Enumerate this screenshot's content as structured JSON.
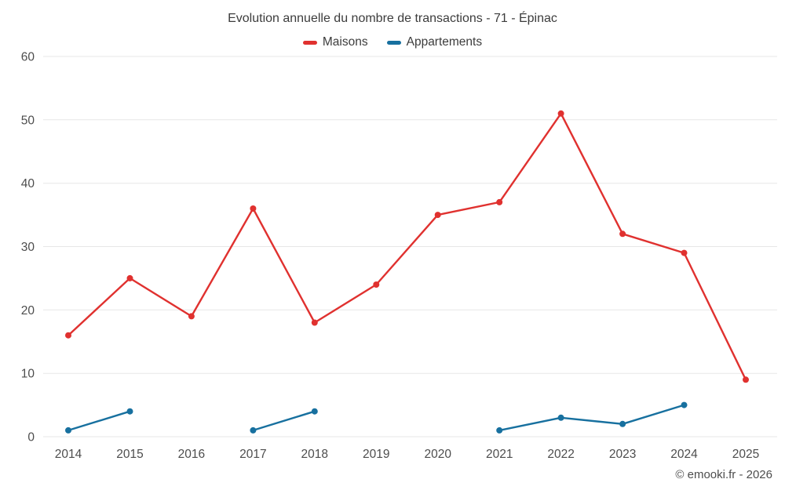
{
  "chart_data": {
    "type": "line",
    "title": "Evolution annuelle du nombre de transactions - 71 - Épinac",
    "categories": [
      "2014",
      "2015",
      "2016",
      "2017",
      "2018",
      "2019",
      "2020",
      "2021",
      "2022",
      "2023",
      "2024",
      "2025"
    ],
    "series": [
      {
        "name": "Maisons",
        "color": "#e0312f",
        "values": [
          16,
          25,
          19,
          36,
          18,
          24,
          35,
          37,
          51,
          32,
          29,
          9
        ]
      },
      {
        "name": "Appartements",
        "color": "#17709f",
        "values": [
          1,
          4,
          null,
          1,
          4,
          null,
          null,
          1,
          3,
          2,
          5,
          null
        ]
      }
    ],
    "ylim": [
      0,
      60
    ],
    "yticks": [
      0,
      10,
      20,
      30,
      40,
      50,
      60
    ],
    "grid": "horizontal",
    "grid_color": "#e7e7e7",
    "axis_color": "#4d4d4d",
    "legend_position": "top"
  },
  "footer": {
    "credit": "© emooki.fr - 2026"
  }
}
